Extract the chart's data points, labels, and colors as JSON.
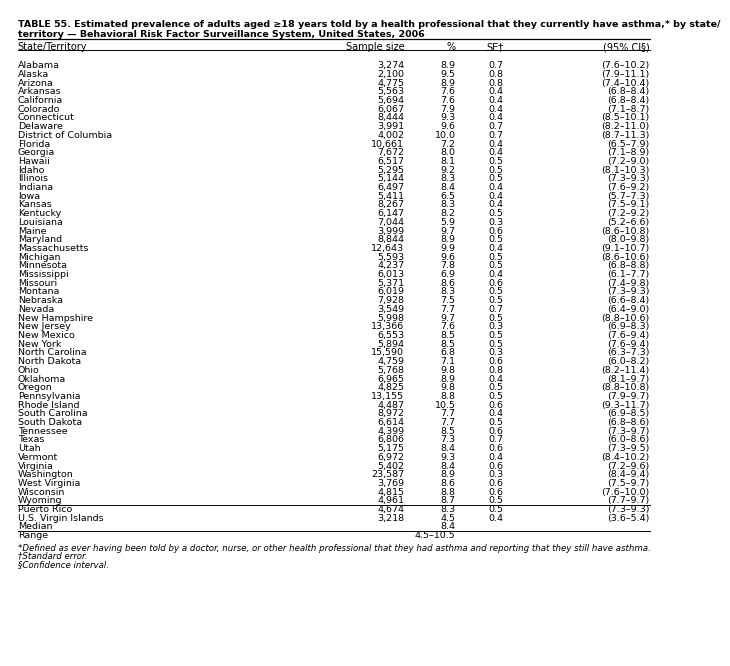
{
  "title_line1": "TABLE 55. Estimated prevalence of adults aged ≥18 years told by a health professional that they currently have asthma,* by state/",
  "title_line2": "territory — Behavioral Risk Factor Surveillance System, United States, 2006",
  "headers": [
    "State/Territory",
    "Sample size",
    "%",
    "SE†",
    "(95% CI§)"
  ],
  "rows": [
    [
      "Alabama",
      "3,274",
      "8.9",
      "0.7",
      "(7.6–10.2)"
    ],
    [
      "Alaska",
      "2,100",
      "9.5",
      "0.8",
      "(7.9–11.1)"
    ],
    [
      "Arizona",
      "4,775",
      "8.9",
      "0.8",
      "(7.4–10.4)"
    ],
    [
      "Arkansas",
      "5,563",
      "7.6",
      "0.4",
      "(6.8–8.4)"
    ],
    [
      "California",
      "5,694",
      "7.6",
      "0.4",
      "(6.8–8.4)"
    ],
    [
      "Colorado",
      "6,067",
      "7.9",
      "0.4",
      "(7.1–8.7)"
    ],
    [
      "Connecticut",
      "8,444",
      "9.3",
      "0.4",
      "(8.5–10.1)"
    ],
    [
      "Delaware",
      "3,991",
      "9.6",
      "0.7",
      "(8.2–11.0)"
    ],
    [
      "District of Columbia",
      "4,002",
      "10.0",
      "0.7",
      "(8.7–11.3)"
    ],
    [
      "Florida",
      "10,661",
      "7.2",
      "0.4",
      "(6.5–7.9)"
    ],
    [
      "Georgia",
      "7,672",
      "8.0",
      "0.4",
      "(7.1–8.9)"
    ],
    [
      "Hawaii",
      "6,517",
      "8.1",
      "0.5",
      "(7.2–9.0)"
    ],
    [
      "Idaho",
      "5,295",
      "9.2",
      "0.5",
      "(8.1–10.3)"
    ],
    [
      "Illinois",
      "5,144",
      "8.3",
      "0.5",
      "(7.3–9.3)"
    ],
    [
      "Indiana",
      "6,497",
      "8.4",
      "0.4",
      "(7.6–9.2)"
    ],
    [
      "Iowa",
      "5,411",
      "6.5",
      "0.4",
      "(5.7–7.3)"
    ],
    [
      "Kansas",
      "8,267",
      "8.3",
      "0.4",
      "(7.5–9.1)"
    ],
    [
      "Kentucky",
      "6,147",
      "8.2",
      "0.5",
      "(7.2–9.2)"
    ],
    [
      "Louisiana",
      "7,044",
      "5.9",
      "0.3",
      "(5.2–6.6)"
    ],
    [
      "Maine",
      "3,999",
      "9.7",
      "0.6",
      "(8.6–10.8)"
    ],
    [
      "Maryland",
      "8,844",
      "8.9",
      "0.5",
      "(8.0–9.8)"
    ],
    [
      "Massachusetts",
      "12,643",
      "9.9",
      "0.4",
      "(9.1–10.7)"
    ],
    [
      "Michigan",
      "5,593",
      "9.6",
      "0.5",
      "(8.6–10.6)"
    ],
    [
      "Minnesota",
      "4,237",
      "7.8",
      "0.5",
      "(6.8–8.8)"
    ],
    [
      "Mississippi",
      "6,013",
      "6.9",
      "0.4",
      "(6.1–7.7)"
    ],
    [
      "Missouri",
      "5,371",
      "8.6",
      "0.6",
      "(7.4–9.8)"
    ],
    [
      "Montana",
      "6,019",
      "8.3",
      "0.5",
      "(7.3–9.3)"
    ],
    [
      "Nebraska",
      "7,928",
      "7.5",
      "0.5",
      "(6.6–8.4)"
    ],
    [
      "Nevada",
      "3,549",
      "7.7",
      "0.7",
      "(6.4–9.0)"
    ],
    [
      "New Hampshire",
      "5,998",
      "9.7",
      "0.5",
      "(8.8–10.6)"
    ],
    [
      "New Jersey",
      "13,366",
      "7.6",
      "0.3",
      "(6.9–8.3)"
    ],
    [
      "New Mexico",
      "6,553",
      "8.5",
      "0.5",
      "(7.6–9.4)"
    ],
    [
      "New York",
      "5,894",
      "8.5",
      "0.5",
      "(7.6–9.4)"
    ],
    [
      "North Carolina",
      "15,590",
      "6.8",
      "0.3",
      "(6.3–7.3)"
    ],
    [
      "North Dakota",
      "4,759",
      "7.1",
      "0.6",
      "(6.0–8.2)"
    ],
    [
      "Ohio",
      "5,768",
      "9.8",
      "0.8",
      "(8.2–11.4)"
    ],
    [
      "Oklahoma",
      "6,965",
      "8.9",
      "0.4",
      "(8.1–9.7)"
    ],
    [
      "Oregon",
      "4,825",
      "9.8",
      "0.5",
      "(8.8–10.8)"
    ],
    [
      "Pennsylvania",
      "13,155",
      "8.8",
      "0.5",
      "(7.9–9.7)"
    ],
    [
      "Rhode Island",
      "4,487",
      "10.5",
      "0.6",
      "(9.3–11.7)"
    ],
    [
      "South Carolina",
      "8,972",
      "7.7",
      "0.4",
      "(6.9–8.5)"
    ],
    [
      "South Dakota",
      "6,614",
      "7.7",
      "0.5",
      "(6.8–8.6)"
    ],
    [
      "Tennessee",
      "4,399",
      "8.5",
      "0.6",
      "(7.3–9.7)"
    ],
    [
      "Texas",
      "6,806",
      "7.3",
      "0.7",
      "(6.0–8.6)"
    ],
    [
      "Utah",
      "5,175",
      "8.4",
      "0.6",
      "(7.3–9.5)"
    ],
    [
      "Vermont",
      "6,972",
      "9.3",
      "0.4",
      "(8.4–10.2)"
    ],
    [
      "Virginia",
      "5,402",
      "8.4",
      "0.6",
      "(7.2–9.6)"
    ],
    [
      "Washington",
      "23,587",
      "8.9",
      "0.3",
      "(8.4–9.4)"
    ],
    [
      "West Virginia",
      "3,769",
      "8.6",
      "0.6",
      "(7.5–9.7)"
    ],
    [
      "Wisconsin",
      "4,815",
      "8.8",
      "0.6",
      "(7.6–10.0)"
    ],
    [
      "Wyoming",
      "4,961",
      "8.7",
      "0.5",
      "(7.7–9.7)"
    ],
    [
      "Puerto Rico",
      "4,674",
      "8.3",
      "0.5",
      "(7.3–9.3)"
    ],
    [
      "U.S. Virgin Islands",
      "3,218",
      "4.5",
      "0.4",
      "(3.6–5.4)"
    ],
    [
      "Median",
      "",
      "8.4",
      "",
      ""
    ],
    [
      "Range",
      "",
      "4.5–10.5",
      "",
      ""
    ]
  ],
  "footnotes": [
    "*Defined as ever having been told by a doctor, nurse, or other health professional that they had asthma and reporting that they still have asthma.",
    "†Standard error.",
    "§Confidence interval."
  ],
  "bg_color": "#ffffff",
  "text_color": "#000000",
  "title_fontsize": 6.8,
  "header_fontsize": 7.0,
  "row_fontsize": 6.8,
  "footnote_fontsize": 6.2
}
